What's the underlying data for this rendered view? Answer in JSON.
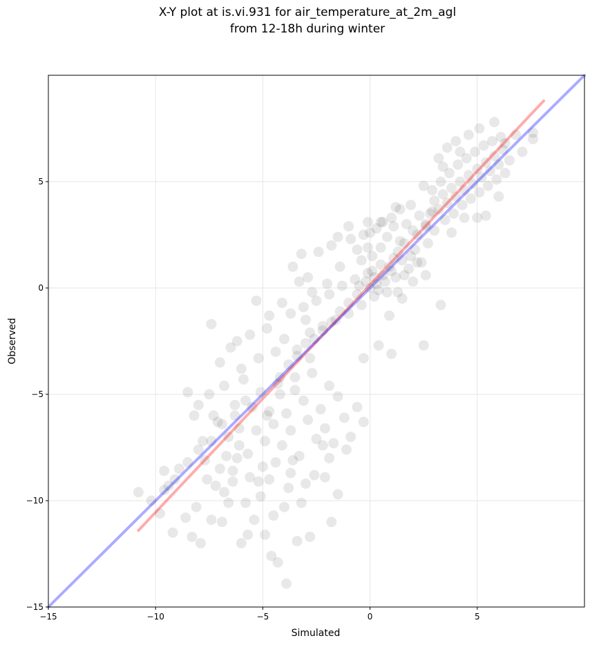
{
  "chart_data": {
    "type": "scatter",
    "title_lines": [
      "X-Y plot at is.vi.931 for air_temperature_at_2m_agl",
      "from 12-18h during winter"
    ],
    "xlabel": "Simulated",
    "ylabel": "Observed",
    "xlim": [
      -15,
      10
    ],
    "ylim": [
      -15,
      10
    ],
    "x_ticks": [
      -15,
      -10,
      -5,
      0,
      5
    ],
    "y_ticks": [
      -15,
      -10,
      -5,
      0,
      5
    ],
    "x_tick_labels": [
      "−15",
      "−10",
      "−5",
      "0",
      "5"
    ],
    "y_tick_labels": [
      "−15",
      "−10",
      "−5",
      "0",
      "5"
    ],
    "grid": true,
    "point_color": "#000000",
    "point_opacity": 0.09,
    "points": [
      [
        -10.8,
        -9.6
      ],
      [
        -10.2,
        -10.0
      ],
      [
        -9.8,
        -10.6
      ],
      [
        -9.4,
        -9.3
      ],
      [
        -9.2,
        -11.5
      ],
      [
        -8.9,
        -8.5
      ],
      [
        -8.6,
        -10.8
      ],
      [
        -8.3,
        -11.7
      ],
      [
        -8.1,
        -10.3
      ],
      [
        -7.9,
        -12.0
      ],
      [
        -7.6,
        -9.0
      ],
      [
        -7.4,
        -10.9
      ],
      [
        -7.2,
        -9.3
      ],
      [
        -7.0,
        -8.5
      ],
      [
        -6.8,
        -9.6
      ],
      [
        -6.6,
        -10.1
      ],
      [
        -6.4,
        -9.1
      ],
      [
        -6.2,
        -8.0
      ],
      [
        -6.0,
        -12.0
      ],
      [
        -5.8,
        -10.1
      ],
      [
        -5.6,
        -8.9
      ],
      [
        -5.4,
        -10.9
      ],
      [
        -5.1,
        -9.8
      ],
      [
        -4.9,
        -11.6
      ],
      [
        -4.7,
        -9.0
      ],
      [
        -4.5,
        -10.7
      ],
      [
        -4.3,
        -12.9
      ],
      [
        -4.0,
        -10.3
      ],
      [
        -3.9,
        -13.9
      ],
      [
        -3.7,
        -8.7
      ],
      [
        -3.4,
        -11.9
      ],
      [
        -3.2,
        -10.1
      ],
      [
        -2.8,
        -11.7
      ],
      [
        -2.1,
        -8.9
      ],
      [
        -1.8,
        -11.0
      ],
      [
        -1.5,
        -9.7
      ],
      [
        -3.0,
        -9.2
      ],
      [
        -4.6,
        -12.6
      ],
      [
        -5.7,
        -11.6
      ],
      [
        -6.9,
        -11.0
      ],
      [
        -8.2,
        -6.0
      ],
      [
        -7.8,
        -7.2
      ],
      [
        -7.5,
        -5.0
      ],
      [
        -7.1,
        -6.3
      ],
      [
        -6.8,
        -4.6
      ],
      [
        -6.6,
        -7.0
      ],
      [
        -6.3,
        -5.5
      ],
      [
        -6.1,
        -6.6
      ],
      [
        -5.9,
        -4.3
      ],
      [
        -5.7,
        -7.8
      ],
      [
        -5.5,
        -5.6
      ],
      [
        -5.3,
        -6.7
      ],
      [
        -5.1,
        -4.9
      ],
      [
        -4.9,
        -7.2
      ],
      [
        -4.7,
        -5.8
      ],
      [
        -4.5,
        -6.4
      ],
      [
        -4.3,
        -4.5
      ],
      [
        -4.1,
        -7.4
      ],
      [
        -3.9,
        -5.9
      ],
      [
        -3.7,
        -6.7
      ],
      [
        -3.5,
        -4.8
      ],
      [
        -3.3,
        -7.9
      ],
      [
        -3.1,
        -5.3
      ],
      [
        -2.9,
        -6.2
      ],
      [
        -2.7,
        -4.0
      ],
      [
        -2.5,
        -7.1
      ],
      [
        -2.3,
        -5.7
      ],
      [
        -2.1,
        -6.6
      ],
      [
        -1.9,
        -4.6
      ],
      [
        -1.7,
        -7.3
      ],
      [
        -1.5,
        -5.1
      ],
      [
        -1.2,
        -6.1
      ],
      [
        -0.9,
        -7.0
      ],
      [
        -0.6,
        -5.6
      ],
      [
        -0.3,
        -6.3
      ],
      [
        -8.5,
        -4.9
      ],
      [
        -8.0,
        -5.5
      ],
      [
        -6.4,
        -8.6
      ],
      [
        -5.2,
        -9.1
      ],
      [
        -4.4,
        -8.2
      ],
      [
        -3.8,
        -9.4
      ],
      [
        -2.6,
        -8.8
      ],
      [
        -1.9,
        -8.0
      ],
      [
        -1.1,
        -7.6
      ],
      [
        -7.3,
        -6.0
      ],
      [
        -6.7,
        -7.9
      ],
      [
        -5.0,
        -8.4
      ],
      [
        -3.6,
        -8.1
      ],
      [
        -2.2,
        -7.4
      ],
      [
        -9.6,
        -8.6
      ],
      [
        -7.0,
        -3.5
      ],
      [
        -6.5,
        -2.8
      ],
      [
        -6.0,
        -3.8
      ],
      [
        -5.6,
        -2.2
      ],
      [
        -5.2,
        -3.3
      ],
      [
        -4.8,
        -1.9
      ],
      [
        -4.4,
        -3.0
      ],
      [
        -4.0,
        -2.4
      ],
      [
        -3.7,
        -1.2
      ],
      [
        -3.4,
        -2.9
      ],
      [
        -3.1,
        -0.9
      ],
      [
        -2.8,
        -2.1
      ],
      [
        -2.5,
        -0.6
      ],
      [
        -2.2,
        -1.8
      ],
      [
        -1.9,
        -0.3
      ],
      [
        -1.6,
        -1.5
      ],
      [
        -1.3,
        0.1
      ],
      [
        -1.0,
        -1.2
      ],
      [
        -0.7,
        0.4
      ],
      [
        -0.4,
        -0.8
      ],
      [
        -0.1,
        0.7
      ],
      [
        0.2,
        -0.4
      ],
      [
        0.5,
        1.1
      ],
      [
        0.8,
        -0.2
      ],
      [
        1.1,
        1.4
      ],
      [
        -2.4,
        1.7
      ],
      [
        -3.2,
        1.6
      ],
      [
        -3.6,
        1.0
      ],
      [
        -2.9,
        0.5
      ],
      [
        -1.8,
        2.0
      ],
      [
        -0.9,
        2.3
      ],
      [
        0.0,
        2.6
      ],
      [
        -0.6,
        1.8
      ],
      [
        -1.4,
        1.0
      ],
      [
        -2.0,
        0.2
      ],
      [
        -2.7,
        -0.2
      ],
      [
        -3.3,
        0.3
      ],
      [
        -3.0,
        -1.5
      ],
      [
        -4.1,
        -0.7
      ],
      [
        -4.7,
        -1.3
      ],
      [
        -7.4,
        -1.7
      ],
      [
        -5.3,
        -0.6
      ],
      [
        -6.2,
        -2.5
      ],
      [
        -0.3,
        -3.3
      ],
      [
        0.4,
        -2.7
      ],
      [
        1.0,
        -3.1
      ],
      [
        2.5,
        -2.7
      ],
      [
        3.3,
        -0.8
      ],
      [
        0.9,
        -1.3
      ],
      [
        1.5,
        -0.5
      ],
      [
        -0.2,
        0.3
      ],
      [
        0.1,
        0.8
      ],
      [
        0.3,
        0.2
      ],
      [
        0.6,
        0.6
      ],
      [
        0.9,
        1.0
      ],
      [
        1.2,
        0.5
      ],
      [
        1.5,
        1.3
      ],
      [
        1.8,
        0.9
      ],
      [
        2.1,
        1.8
      ],
      [
        2.4,
        1.2
      ],
      [
        -0.5,
        0.1
      ],
      [
        0.0,
        0.0
      ],
      [
        0.2,
        0.5
      ],
      [
        0.4,
        -0.1
      ],
      [
        0.7,
        0.3
      ],
      [
        1.0,
        0.8
      ],
      [
        1.3,
        1.7
      ],
      [
        1.6,
        2.1
      ],
      [
        1.9,
        1.5
      ],
      [
        2.2,
        2.5
      ],
      [
        0.1,
        1.5
      ],
      [
        0.5,
        1.9
      ],
      [
        0.8,
        2.4
      ],
      [
        1.1,
        2.9
      ],
      [
        1.4,
        2.2
      ],
      [
        1.7,
        3.0
      ],
      [
        2.0,
        2.7
      ],
      [
        2.3,
        3.4
      ],
      [
        2.6,
        2.9
      ],
      [
        2.9,
        3.6
      ],
      [
        -0.4,
        1.3
      ],
      [
        -0.1,
        1.9
      ],
      [
        0.3,
        2.8
      ],
      [
        0.6,
        3.1
      ],
      [
        1.0,
        3.3
      ],
      [
        1.4,
        3.7
      ],
      [
        1.9,
        3.9
      ],
      [
        -0.1,
        3.1
      ],
      [
        -1.0,
        2.9
      ],
      [
        -1.5,
        2.4
      ],
      [
        2.6,
        3.0
      ],
      [
        2.8,
        3.5
      ],
      [
        3.0,
        4.1
      ],
      [
        3.2,
        3.7
      ],
      [
        3.4,
        4.4
      ],
      [
        3.6,
        4.0
      ],
      [
        3.8,
        4.7
      ],
      [
        4.0,
        4.3
      ],
      [
        4.2,
        5.0
      ],
      [
        4.4,
        4.6
      ],
      [
        4.6,
        5.3
      ],
      [
        4.8,
        4.9
      ],
      [
        5.0,
        5.6
      ],
      [
        5.2,
        5.2
      ],
      [
        5.4,
        5.9
      ],
      [
        5.6,
        5.5
      ],
      [
        5.8,
        6.2
      ],
      [
        6.0,
        5.8
      ],
      [
        6.2,
        6.5
      ],
      [
        2.9,
        4.6
      ],
      [
        3.3,
        5.0
      ],
      [
        3.7,
        5.4
      ],
      [
        4.1,
        5.8
      ],
      [
        4.5,
        6.1
      ],
      [
        4.9,
        6.4
      ],
      [
        5.3,
        6.7
      ],
      [
        5.7,
        6.9
      ],
      [
        6.1,
        7.1
      ],
      [
        3.0,
        2.7
      ],
      [
        3.5,
        3.2
      ],
      [
        3.9,
        3.5
      ],
      [
        4.3,
        3.9
      ],
      [
        4.7,
        4.2
      ],
      [
        5.1,
        4.5
      ],
      [
        5.5,
        4.8
      ],
      [
        5.9,
        5.1
      ],
      [
        6.3,
        5.4
      ],
      [
        6.5,
        6.0
      ],
      [
        3.2,
        6.1
      ],
      [
        3.6,
        6.6
      ],
      [
        4.0,
        6.9
      ],
      [
        4.6,
        7.2
      ],
      [
        5.1,
        7.5
      ],
      [
        5.8,
        7.8
      ],
      [
        6.3,
        6.8
      ],
      [
        6.8,
        7.2
      ],
      [
        7.1,
        6.4
      ],
      [
        7.6,
        7.3
      ],
      [
        7.6,
        7.0
      ],
      [
        5.4,
        3.4
      ],
      [
        5.0,
        3.3
      ],
      [
        6.0,
        4.3
      ],
      [
        4.4,
        3.3
      ],
      [
        3.8,
        2.6
      ],
      [
        2.7,
        2.1
      ],
      [
        2.2,
        1.2
      ],
      [
        1.6,
        0.6
      ],
      [
        2.0,
        0.3
      ],
      [
        2.6,
        0.6
      ],
      [
        1.3,
        -0.2
      ],
      [
        0.5,
        3.1
      ],
      [
        -0.3,
        2.5
      ],
      [
        1.2,
        3.8
      ],
      [
        2.5,
        4.8
      ],
      [
        3.4,
        5.7
      ],
      [
        4.2,
        6.4
      ],
      [
        -4.2,
        -4.2
      ],
      [
        -3.8,
        -3.6
      ],
      [
        -3.4,
        -3.2
      ],
      [
        -3.0,
        -2.6
      ],
      [
        -2.6,
        -2.4
      ],
      [
        -2.2,
        -2.0
      ],
      [
        -1.8,
        -1.6
      ],
      [
        -1.4,
        -1.1
      ],
      [
        -1.0,
        -0.7
      ],
      [
        -0.6,
        -0.3
      ],
      [
        -5.8,
        -5.3
      ],
      [
        -6.3,
        -6.0
      ],
      [
        -6.9,
        -6.4
      ],
      [
        -7.4,
        -7.2
      ],
      [
        -8.0,
        -7.6
      ],
      [
        -8.5,
        -8.2
      ],
      [
        -9.1,
        -9.0
      ],
      [
        -9.6,
        -9.5
      ],
      [
        -7.7,
        -8.1
      ],
      [
        -6.1,
        -7.4
      ],
      [
        -4.8,
        -6.0
      ],
      [
        -4.2,
        -5.0
      ],
      [
        -3.5,
        -4.2
      ],
      [
        -2.8,
        -3.3
      ]
    ],
    "lines": [
      {
        "name": "",
        "color": "#ff0000",
        "opacity": 0.33,
        "x": [
          -10.8,
          8.1
        ],
        "y": [
          -11.4,
          8.8
        ]
      },
      {
        "name": "",
        "color": "#0000ff",
        "opacity": 0.33,
        "x": [
          -15,
          10
        ],
        "y": [
          -15,
          10
        ]
      }
    ]
  }
}
